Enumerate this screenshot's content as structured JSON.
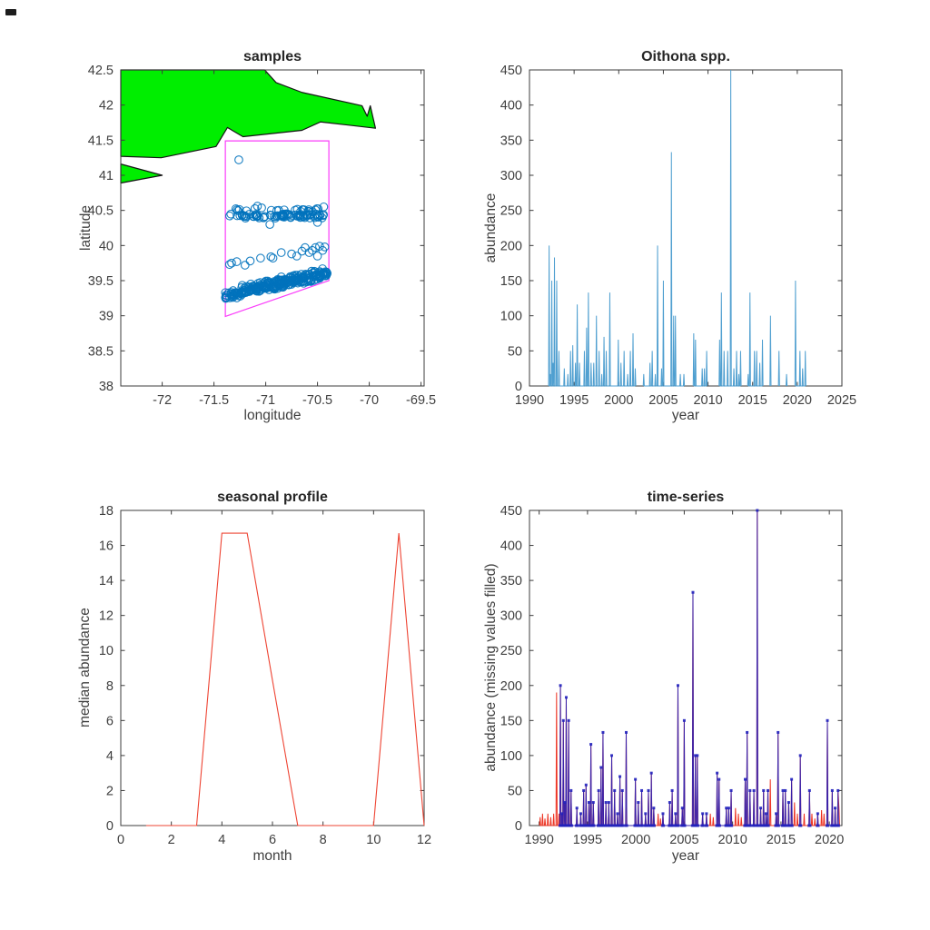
{
  "palette": {
    "background": "#ffffff",
    "axis_color": "#3c3c3c",
    "tick_text_color": "#3f3f3f",
    "title_text_color": "#262626"
  },
  "chart_data": [
    {
      "id": "samples",
      "type": "scatter",
      "title": "samples",
      "xlabel": "longitude",
      "ylabel": "latitude",
      "xlim": [
        -72.4,
        -69.47
      ],
      "ylim": [
        38,
        42.5
      ],
      "xticks": [
        -72,
        -71.5,
        -71,
        -70.5,
        -70,
        -69.5
      ],
      "yticks": [
        38,
        38.5,
        39,
        39.5,
        40,
        40.5,
        41,
        41.5,
        42,
        42.5
      ],
      "grid": false,
      "land_color": "#00ee00",
      "land_outline_color": "#141414",
      "land_polygons": [
        [
          [
            -72.4,
            42.5
          ],
          [
            -71.01,
            42.5
          ],
          [
            -70.9,
            42.32
          ],
          [
            -70.65,
            42.18
          ],
          [
            -70.07,
            41.99
          ],
          [
            -70.02,
            41.84
          ],
          [
            -69.99,
            41.99
          ],
          [
            -69.94,
            41.67
          ],
          [
            -70.47,
            41.76
          ],
          [
            -70.65,
            41.64
          ],
          [
            -71.22,
            41.55
          ],
          [
            -71.37,
            41.68
          ],
          [
            -71.48,
            41.41
          ],
          [
            -72.01,
            41.25
          ],
          [
            -72.4,
            41.27
          ]
        ],
        [
          [
            -72.4,
            41.16
          ],
          [
            -72.0,
            41.0
          ],
          [
            -72.4,
            40.89
          ]
        ]
      ],
      "region_box": {
        "color": "#fa3cfa",
        "points": [
          [
            -71.39,
            41.49
          ],
          [
            -70.39,
            41.49
          ],
          [
            -70.39,
            39.5
          ],
          [
            -71.39,
            38.99
          ]
        ]
      },
      "marker": {
        "shape": "open-circle",
        "color": "#0072bd",
        "radius": 4.3
      },
      "outlier_points": [
        [
          -71.26,
          41.22
        ],
        [
          -70.96,
          40.3
        ],
        [
          -70.5,
          40.33
        ],
        [
          -71.08,
          40.56
        ],
        [
          -70.44,
          40.55
        ]
      ],
      "mid_points": [
        [
          -71.35,
          39.73
        ],
        [
          -71.33,
          39.75
        ],
        [
          -71.2,
          39.72
        ],
        [
          -71.15,
          39.78
        ],
        [
          -71.05,
          39.82
        ],
        [
          -70.95,
          39.84
        ],
        [
          -70.93,
          39.82
        ],
        [
          -70.85,
          39.9
        ],
        [
          -70.75,
          39.88
        ],
        [
          -70.7,
          39.85
        ],
        [
          -70.62,
          39.97
        ],
        [
          -70.58,
          39.9
        ],
        [
          -70.55,
          39.93
        ],
        [
          -70.52,
          39.97
        ],
        [
          -70.48,
          39.99
        ],
        [
          -70.45,
          39.93
        ],
        [
          -70.43,
          39.98
        ],
        [
          -70.5,
          39.85
        ],
        [
          -70.65,
          39.92
        ],
        [
          -71.28,
          39.77
        ]
      ],
      "clusters": {
        "seed": 7,
        "bands": [
          {
            "name": "upper-band-dense",
            "n": 80,
            "lon": [
              -71.36,
              -70.41
            ],
            "lat_center": [
              40.42,
              40.42
            ],
            "jitter": 0.035
          },
          {
            "name": "upper-band-sparse",
            "n": 24,
            "lon": [
              -71.34,
              -70.44
            ],
            "lat_center": [
              40.51,
              40.51
            ],
            "jitter": 0.03
          },
          {
            "name": "lower-band-dense",
            "n": 240,
            "lon": [
              -71.39,
              -70.4
            ],
            "lat_center": [
              39.28,
              39.6
            ],
            "jitter": 0.07
          },
          {
            "name": "lower-band-fringe",
            "n": 30,
            "lon": [
              -71.25,
              -70.42
            ],
            "lat_center": [
              39.4,
              39.66
            ],
            "jitter": 0.035
          }
        ]
      }
    },
    {
      "id": "oithona",
      "type": "line",
      "title": "Oithona spp.",
      "xlabel": "year",
      "ylabel": "abundance",
      "xlim": [
        1990,
        2025
      ],
      "ylim": [
        0,
        450
      ],
      "xticks": [
        1990,
        1995,
        2000,
        2005,
        2010,
        2015,
        2020,
        2025
      ],
      "yticks": [
        0,
        50,
        100,
        150,
        200,
        250,
        300,
        350,
        400,
        450
      ],
      "grid": false,
      "line_color": "#4f9fd0",
      "line_width": 1,
      "spike_half_width": 0.06,
      "note": "spiky abundance series; each entry is [year, peak], baseline 0 between spikes; segments are separated by data gaps",
      "segments": [
        [
          [
            1992.2,
            200
          ],
          [
            1992.35,
            17
          ],
          [
            1992.5,
            150
          ],
          [
            1992.65,
            33
          ],
          [
            1992.8,
            183
          ],
          [
            1993.05,
            150
          ],
          [
            1993.3,
            50
          ],
          [
            1993.9,
            25
          ],
          [
            1994.3,
            17
          ],
          [
            1994.6,
            50
          ],
          [
            1994.85,
            58
          ],
          [
            1995.15,
            33
          ],
          [
            1995.35,
            116
          ],
          [
            1995.6,
            33
          ],
          [
            1996.15,
            50
          ],
          [
            1996.4,
            83
          ],
          [
            1996.6,
            133
          ],
          [
            1996.9,
            33
          ],
          [
            1997.2,
            33
          ],
          [
            1997.5,
            100
          ],
          [
            1997.8,
            50
          ],
          [
            1998.1,
            17
          ],
          [
            1998.35,
            70
          ],
          [
            1998.6,
            50
          ],
          [
            1999.0,
            133
          ],
          [
            1999.95,
            66
          ],
          [
            2000.25,
            33
          ],
          [
            2000.6,
            50
          ],
          [
            2001.0,
            17
          ],
          [
            2001.3,
            50
          ],
          [
            2001.6,
            75
          ],
          [
            2001.85,
            25
          ]
        ],
        [
          [
            2002.8,
            17
          ],
          [
            2003.5,
            33
          ],
          [
            2003.75,
            50
          ],
          [
            2004.1,
            17
          ],
          [
            2004.35,
            200
          ],
          [
            2004.8,
            25
          ],
          [
            2005.0,
            150
          ],
          [
            2005.9,
            333
          ],
          [
            2006.15,
            100
          ],
          [
            2006.35,
            100
          ],
          [
            2006.9,
            17
          ],
          [
            2007.3,
            17
          ]
        ],
        [
          [
            2008.4,
            75
          ],
          [
            2008.6,
            66
          ],
          [
            2009.35,
            25
          ],
          [
            2009.6,
            25
          ],
          [
            2009.85,
            50
          ]
        ],
        [
          [
            2011.3,
            66
          ],
          [
            2011.5,
            133
          ],
          [
            2011.8,
            50
          ],
          [
            2012.2,
            50
          ],
          [
            2012.55,
            450
          ],
          [
            2012.9,
            25
          ],
          [
            2013.2,
            50
          ],
          [
            2013.45,
            17
          ],
          [
            2013.65,
            50
          ]
        ],
        [
          [
            2014.5,
            17
          ],
          [
            2014.7,
            133
          ],
          [
            2015.2,
            50
          ],
          [
            2015.45,
            50
          ],
          [
            2015.8,
            33
          ],
          [
            2016.1,
            66
          ]
        ],
        [
          [
            2017.0,
            100
          ]
        ],
        [
          [
            2017.95,
            50
          ]
        ],
        [
          [
            2018.8,
            17
          ]
        ],
        [
          [
            2019.8,
            150
          ],
          [
            2020.3,
            50
          ],
          [
            2020.6,
            25
          ],
          [
            2020.9,
            50
          ]
        ]
      ]
    },
    {
      "id": "seasonal",
      "type": "line",
      "title": "seasonal profile",
      "xlabel": "month",
      "ylabel": "median abundance",
      "xlim": [
        0,
        12
      ],
      "ylim": [
        0,
        18
      ],
      "xticks": [
        0,
        2,
        4,
        6,
        8,
        10,
        12
      ],
      "yticks": [
        0,
        2,
        4,
        6,
        8,
        10,
        12,
        14,
        16,
        18
      ],
      "grid": false,
      "line_color": "#ee4433",
      "line_width": 1.1,
      "x": [
        1,
        2,
        3,
        4,
        5,
        6,
        7,
        8,
        9,
        10,
        11,
        12
      ],
      "y": [
        0,
        0,
        0,
        16.7,
        16.7,
        8.3,
        0,
        0,
        0,
        0,
        16.7,
        0
      ]
    },
    {
      "id": "timeseries",
      "type": "line",
      "title": "time-series",
      "xlabel": "year",
      "ylabel": "abundance (missing values filled)",
      "xlim": [
        1989,
        2021.3
      ],
      "ylim": [
        0,
        450
      ],
      "xticks": [
        1990,
        1995,
        2000,
        2005,
        2010,
        2015,
        2020
      ],
      "yticks": [
        0,
        50,
        100,
        150,
        200,
        250,
        300,
        350,
        400,
        450
      ],
      "grid": false,
      "observed_color": "#2121bd",
      "filled_color": "#ee3322",
      "marker": {
        "shape": "filled-square",
        "size": 3
      },
      "spike_half_width": 0.06,
      "note": "blue = observed series (same spikes as Oithona spp. panel) with point markers; red = gap-filled series including extra spikes listed below",
      "filled_extra_spikes": [
        [
          1990.1,
          12
        ],
        [
          1990.35,
          17
        ],
        [
          1990.6,
          10
        ],
        [
          1990.9,
          17
        ],
        [
          1991.2,
          12
        ],
        [
          1991.5,
          17
        ],
        [
          1991.8,
          190
        ],
        [
          1992.05,
          17
        ],
        [
          2002.3,
          17
        ],
        [
          2002.55,
          10
        ],
        [
          2007.7,
          17
        ],
        [
          2008.0,
          12
        ],
        [
          2010.3,
          25
        ],
        [
          2010.6,
          17
        ],
        [
          2010.9,
          12
        ],
        [
          2013.9,
          66
        ],
        [
          2016.4,
          33
        ],
        [
          2016.7,
          17
        ],
        [
          2017.4,
          17
        ],
        [
          2018.2,
          17
        ],
        [
          2018.5,
          10
        ],
        [
          2019.2,
          22
        ],
        [
          2019.45,
          17
        ],
        [
          2021.0,
          25
        ]
      ]
    }
  ]
}
